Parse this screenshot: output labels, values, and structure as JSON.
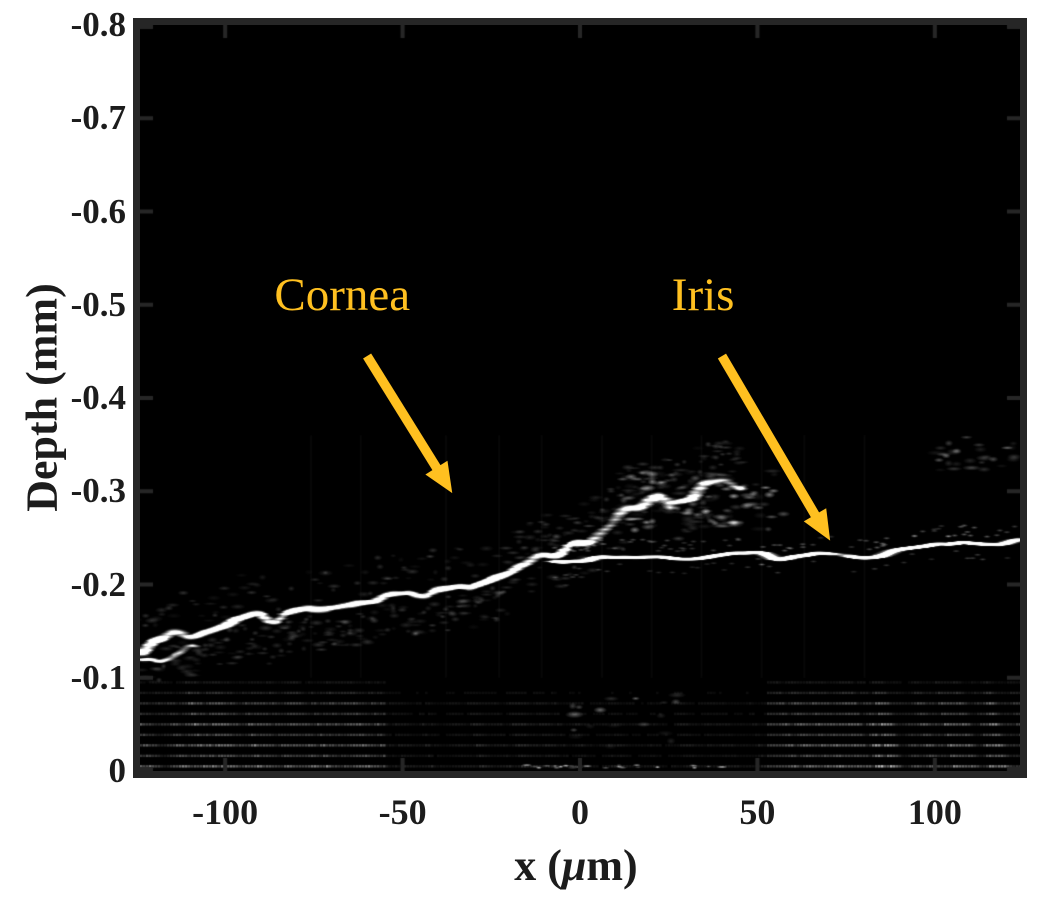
{
  "figure": {
    "background": "#ffffff",
    "frame_color": "#262626",
    "text_color": "#1c1c1c",
    "annotation_color": "#FFC020"
  },
  "chart_data": {
    "type": "heatmap",
    "subtype": "oct-bscan-grayscale-image",
    "title": "",
    "xlabel": "x (μm)",
    "xlabel_parts": {
      "prefix": "x (",
      "mu": "μ",
      "suffix": "m)"
    },
    "ylabel": "Depth (mm)",
    "colormap": "gray",
    "plot_background": "#000000",
    "xlim": [
      -124,
      124
    ],
    "ylim_top_to_bottom": [
      -0.8,
      0
    ],
    "x_ticks": {
      "values": [
        -100,
        -50,
        0,
        50,
        100
      ],
      "labels": [
        "-100",
        "-50",
        "0",
        "50",
        "100"
      ]
    },
    "y_ticks": {
      "values": [
        -0.8,
        -0.7,
        -0.6,
        -0.5,
        -0.4,
        -0.3,
        -0.2,
        -0.1,
        0
      ],
      "labels": [
        "-0.8",
        "-0.7",
        "-0.6",
        "-0.5",
        "-0.4",
        "-0.3",
        "-0.2",
        "-0.1",
        "0"
      ]
    },
    "grid": false,
    "box": true,
    "annotations": [
      {
        "label": "Cornea",
        "text_x_um": -67,
        "text_depth_mm": -0.51,
        "arrow_from": [
          -60,
          -0.445
        ],
        "arrow_to": [
          -36,
          -0.298
        ],
        "color": "#FFC020"
      },
      {
        "label": "Iris",
        "text_x_um": 34.7,
        "text_depth_mm": -0.51,
        "arrow_from": [
          40,
          -0.445
        ],
        "arrow_to": [
          70.5,
          -0.247
        ],
        "color": "#FFC020"
      }
    ],
    "image_features": {
      "cornea_surface_profile": [
        [
          -124,
          -0.134
        ],
        [
          -118,
          -0.137
        ],
        [
          -112,
          -0.148
        ],
        [
          -106,
          -0.152
        ],
        [
          -100,
          -0.159
        ],
        [
          -94,
          -0.163
        ],
        [
          -88,
          -0.166
        ],
        [
          -82,
          -0.168
        ],
        [
          -76,
          -0.168
        ],
        [
          -70,
          -0.173
        ],
        [
          -64,
          -0.177
        ],
        [
          -58,
          -0.182
        ],
        [
          -51,
          -0.186
        ],
        [
          -45,
          -0.19
        ],
        [
          -37,
          -0.195
        ],
        [
          -31,
          -0.2
        ],
        [
          -26,
          -0.208
        ],
        [
          -21,
          -0.217
        ],
        [
          -16,
          -0.223
        ],
        [
          -11,
          -0.227
        ],
        [
          -6,
          -0.232
        ],
        [
          -1,
          -0.24
        ],
        [
          4,
          -0.252
        ],
        [
          9,
          -0.263
        ],
        [
          14,
          -0.277
        ],
        [
          19,
          -0.285
        ],
        [
          24,
          -0.293
        ],
        [
          29,
          -0.298
        ],
        [
          34,
          -0.302
        ],
        [
          40,
          -0.305
        ],
        [
          46,
          -0.304
        ]
      ],
      "iris_surface_profile": [
        [
          -7,
          -0.229
        ],
        [
          2,
          -0.226
        ],
        [
          12,
          -0.228
        ],
        [
          22,
          -0.231
        ],
        [
          32,
          -0.229
        ],
        [
          42,
          -0.232
        ],
        [
          52,
          -0.23
        ],
        [
          62,
          -0.233
        ],
        [
          72,
          -0.231
        ],
        [
          80,
          -0.229
        ],
        [
          88,
          -0.238
        ],
        [
          96,
          -0.243
        ],
        [
          104,
          -0.241
        ],
        [
          112,
          -0.245
        ],
        [
          118,
          -0.243
        ],
        [
          124,
          -0.246
        ]
      ],
      "iris_band_x_start_um": -7,
      "cornea_band_x_end_um": 46,
      "left_edge_echo": {
        "x_um": [
          -124,
          -108
        ],
        "offset_mm": 0.018
      },
      "speckle_clusters": [
        {
          "name": "cornea-apex-speckle",
          "x_um": [
            12,
            58
          ],
          "depth_mm": [
            -0.26,
            -0.322
          ],
          "count": 130,
          "max_alpha": 0.65
        },
        {
          "name": "top-right-speckle",
          "x_um": [
            100,
            123
          ],
          "depth_mm": [
            -0.322,
            -0.355
          ],
          "count": 28,
          "max_alpha": 0.4
        },
        {
          "name": "central-floor-speckle",
          "x_um": [
            -4,
            30
          ],
          "depth_mm": [
            -0.02,
            -0.09
          ],
          "count": 18,
          "max_alpha": 0.5
        }
      ],
      "bottom_artifact": {
        "depth_range": [
          -0.095,
          -0.005
        ],
        "rows": 9,
        "bright_left_max_um": -55,
        "bright_right_min_um": 52,
        "center_dim_factor": 0.3
      },
      "vertical_seams_x_um": [
        -76,
        -62,
        -38,
        -23,
        -11,
        6,
        20,
        34,
        51,
        63,
        80
      ]
    }
  }
}
